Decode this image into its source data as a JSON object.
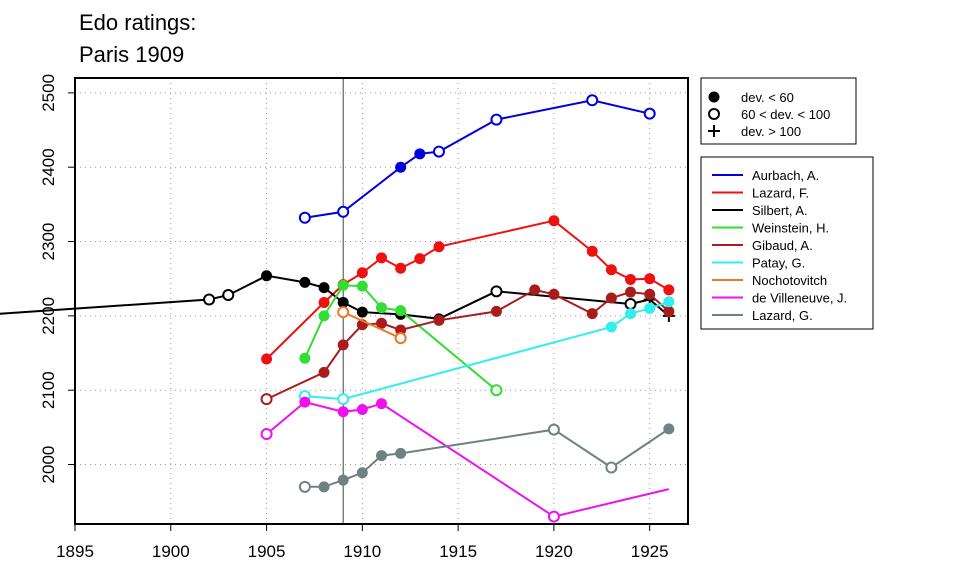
{
  "title_line1": "Edo ratings:",
  "title_line2": "Paris 1909",
  "chart_data": {
    "type": "line",
    "title": "Edo ratings: Paris 1909",
    "xlabel": "",
    "ylabel": "",
    "xlim": [
      1895,
      1927
    ],
    "ylim": [
      1920,
      2520
    ],
    "x_ticks": [
      1895,
      1900,
      1905,
      1910,
      1915,
      1920,
      1925
    ],
    "y_ticks": [
      2000,
      2100,
      2200,
      2300,
      2400,
      2500
    ],
    "grid": true,
    "reference_year": 1909,
    "marker_legend": [
      {
        "label": "dev. < 60",
        "marker": "filled"
      },
      {
        "label": "60 < dev. < 100",
        "marker": "open"
      },
      {
        "label": "dev. > 100",
        "marker": "plus"
      }
    ],
    "series": [
      {
        "name": "Aurbach, A.",
        "color": "#0000dd",
        "points": [
          {
            "x": 1907,
            "y": 2332,
            "m": "open"
          },
          {
            "x": 1909,
            "y": 2340,
            "m": "open"
          },
          {
            "x": 1912,
            "y": 2400,
            "m": "filled"
          },
          {
            "x": 1913,
            "y": 2418,
            "m": "filled"
          },
          {
            "x": 1914,
            "y": 2421,
            "m": "open"
          },
          {
            "x": 1917,
            "y": 2464,
            "m": "open"
          },
          {
            "x": 1922,
            "y": 2490,
            "m": "open"
          },
          {
            "x": 1925,
            "y": 2472,
            "m": "open"
          }
        ]
      },
      {
        "name": "Lazard, F.",
        "color": "#ee1111",
        "points": [
          {
            "x": 1905,
            "y": 2142,
            "m": "filled"
          },
          {
            "x": 1908,
            "y": 2218,
            "m": "filled"
          },
          {
            "x": 1909,
            "y": 2242,
            "m": "filled"
          },
          {
            "x": 1910,
            "y": 2258,
            "m": "filled"
          },
          {
            "x": 1911,
            "y": 2278,
            "m": "filled"
          },
          {
            "x": 1912,
            "y": 2264,
            "m": "filled"
          },
          {
            "x": 1913,
            "y": 2277,
            "m": "filled"
          },
          {
            "x": 1914,
            "y": 2293,
            "m": "filled"
          },
          {
            "x": 1920,
            "y": 2328,
            "m": "filled"
          },
          {
            "x": 1922,
            "y": 2287,
            "m": "filled"
          },
          {
            "x": 1923,
            "y": 2262,
            "m": "filled"
          },
          {
            "x": 1924,
            "y": 2249,
            "m": "filled"
          },
          {
            "x": 1925,
            "y": 2250,
            "m": "filled"
          },
          {
            "x": 1926,
            "y": 2235,
            "m": "filled"
          }
        ]
      },
      {
        "name": "Silbert, A.",
        "color": "#000000",
        "points": [
          {
            "x": 1886,
            "y": 2194,
            "m": "open"
          },
          {
            "x": 1902,
            "y": 2222,
            "m": "open"
          },
          {
            "x": 1903,
            "y": 2228,
            "m": "open"
          },
          {
            "x": 1905,
            "y": 2254,
            "m": "filled"
          },
          {
            "x": 1907,
            "y": 2245,
            "m": "filled"
          },
          {
            "x": 1908,
            "y": 2238,
            "m": "filled"
          },
          {
            "x": 1909,
            "y": 2218,
            "m": "filled"
          },
          {
            "x": 1910,
            "y": 2205,
            "m": "filled"
          },
          {
            "x": 1912,
            "y": 2202,
            "m": "filled"
          },
          {
            "x": 1914,
            "y": 2196,
            "m": "filled"
          },
          {
            "x": 1917,
            "y": 2233,
            "m": "open"
          },
          {
            "x": 1924,
            "y": 2216,
            "m": "open"
          },
          {
            "x": 1925,
            "y": 2222,
            "m": "plus"
          },
          {
            "x": 1926,
            "y": 2200,
            "m": "plus"
          }
        ]
      },
      {
        "name": "Weinstein, H.",
        "color": "#33dd33",
        "points": [
          {
            "x": 1907,
            "y": 2143,
            "m": "filled"
          },
          {
            "x": 1908,
            "y": 2200,
            "m": "filled"
          },
          {
            "x": 1909,
            "y": 2241,
            "m": "filled"
          },
          {
            "x": 1910,
            "y": 2240,
            "m": "filled"
          },
          {
            "x": 1911,
            "y": 2211,
            "m": "filled"
          },
          {
            "x": 1912,
            "y": 2207,
            "m": "filled"
          },
          {
            "x": 1917,
            "y": 2100,
            "m": "open"
          }
        ]
      },
      {
        "name": "Gibaud, A.",
        "color": "#aa1c1c",
        "points": [
          {
            "x": 1905,
            "y": 2088,
            "m": "open"
          },
          {
            "x": 1908,
            "y": 2124,
            "m": "filled"
          },
          {
            "x": 1909,
            "y": 2161,
            "m": "filled"
          },
          {
            "x": 1910,
            "y": 2188,
            "m": "filled"
          },
          {
            "x": 1911,
            "y": 2190,
            "m": "filled"
          },
          {
            "x": 1912,
            "y": 2181,
            "m": "filled"
          },
          {
            "x": 1914,
            "y": 2194,
            "m": "filled"
          },
          {
            "x": 1917,
            "y": 2206,
            "m": "filled"
          },
          {
            "x": 1919,
            "y": 2235,
            "m": "filled"
          },
          {
            "x": 1920,
            "y": 2229,
            "m": "filled"
          },
          {
            "x": 1922,
            "y": 2203,
            "m": "filled"
          },
          {
            "x": 1923,
            "y": 2224,
            "m": "filled"
          },
          {
            "x": 1924,
            "y": 2232,
            "m": "filled"
          },
          {
            "x": 1925,
            "y": 2229,
            "m": "filled"
          },
          {
            "x": 1926,
            "y": 2206,
            "m": "filled"
          }
        ]
      },
      {
        "name": "Patay, G.",
        "color": "#33eeee",
        "points": [
          {
            "x": 1907,
            "y": 2092,
            "m": "open"
          },
          {
            "x": 1909,
            "y": 2088,
            "m": "open"
          },
          {
            "x": 1923,
            "y": 2185,
            "m": "filled"
          },
          {
            "x": 1924,
            "y": 2203,
            "m": "filled"
          },
          {
            "x": 1925,
            "y": 2210,
            "m": "filled"
          },
          {
            "x": 1926,
            "y": 2219,
            "m": "filled"
          }
        ]
      },
      {
        "name": "Nochotovitch",
        "color": "#ee7722",
        "points": [
          {
            "x": 1909,
            "y": 2205,
            "m": "open"
          },
          {
            "x": 1912,
            "y": 2170,
            "m": "open"
          }
        ]
      },
      {
        "name": "de Villeneuve, J.",
        "color": "#ee11ee",
        "points": [
          {
            "x": 1905,
            "y": 2041,
            "m": "open"
          },
          {
            "x": 1907,
            "y": 2084,
            "m": "filled"
          },
          {
            "x": 1909,
            "y": 2071,
            "m": "filled"
          },
          {
            "x": 1910,
            "y": 2074,
            "m": "filled"
          },
          {
            "x": 1911,
            "y": 2082,
            "m": "filled"
          },
          {
            "x": 1920,
            "y": 1930,
            "m": "open"
          },
          {
            "x": 1926,
            "y": 1967,
            "m": "none"
          }
        ]
      },
      {
        "name": "Lazard, G.",
        "color": "#6f8282",
        "points": [
          {
            "x": 1907,
            "y": 1970,
            "m": "open"
          },
          {
            "x": 1908,
            "y": 1970,
            "m": "filled"
          },
          {
            "x": 1909,
            "y": 1979,
            "m": "filled"
          },
          {
            "x": 1910,
            "y": 1989,
            "m": "filled"
          },
          {
            "x": 1911,
            "y": 2012,
            "m": "filled"
          },
          {
            "x": 1912,
            "y": 2015,
            "m": "filled"
          },
          {
            "x": 1920,
            "y": 2047,
            "m": "open"
          },
          {
            "x": 1923,
            "y": 1996,
            "m": "open"
          },
          {
            "x": 1926,
            "y": 2048,
            "m": "filled"
          }
        ]
      }
    ]
  }
}
